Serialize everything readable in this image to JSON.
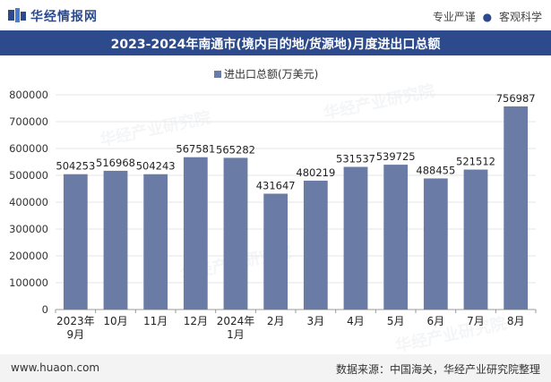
{
  "header": {
    "brand": "华经情报网",
    "tagline_left": "专业严谨",
    "tagline_sep": "●",
    "tagline_right": "客观科学"
  },
  "watermark": {
    "text_cn": "华经产业研究院",
    "text_url": "www.huaon.com"
  },
  "footer": {
    "url": "www.huaon.com",
    "source": "数据来源：中国海关，华经产业研究院整理"
  },
  "colors": {
    "bar": "#6a7ca5",
    "title_bg": "#2c4a8c",
    "grid": "#e6e6e6"
  },
  "chart_data": {
    "type": "bar",
    "title": "2023-2024年南通市(境内目的地/货源地)月度进出口总额",
    "legend": "进出口总额(万美元)",
    "legend_position": "top-center",
    "categories": [
      "2023年\n9月",
      "10月",
      "11月",
      "12月",
      "2024年\n1月",
      "2月",
      "3月",
      "4月",
      "5月",
      "6月",
      "7月",
      "8月"
    ],
    "values": [
      504253,
      516968,
      504243,
      567581,
      565282,
      431647,
      480219,
      531537,
      539725,
      488455,
      521512,
      756987
    ],
    "ylim": [
      0,
      800000
    ],
    "yticks": [
      0,
      100000,
      200000,
      300000,
      400000,
      500000,
      600000,
      700000,
      800000
    ],
    "grid": true
  }
}
